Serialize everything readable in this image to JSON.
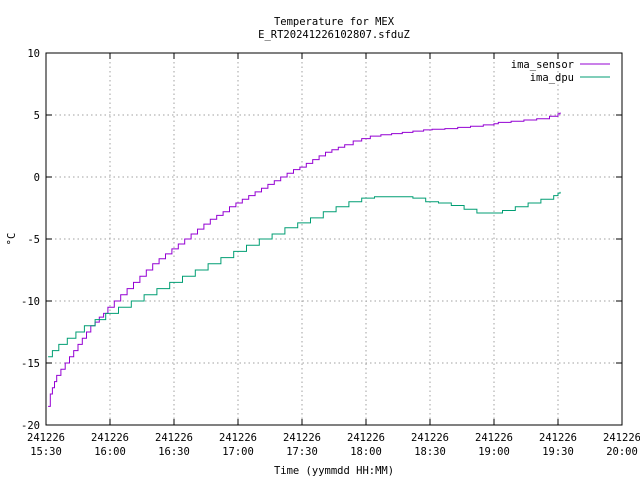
{
  "chart_data": {
    "type": "line",
    "title": "Temperature for MEX",
    "subtitle": "E_RT20241226102807.sfduZ",
    "xlabel": "Time (yymmdd HH:MM)",
    "ylabel": "°C",
    "xlim": [
      "241226 15:30",
      "241226 20:00"
    ],
    "ylim": [
      -20,
      10
    ],
    "grid": true,
    "legend_position": "top-right",
    "x_ticks": [
      {
        "date": "241226",
        "time": "15:30"
      },
      {
        "date": "241226",
        "time": "16:00"
      },
      {
        "date": "241226",
        "time": "16:30"
      },
      {
        "date": "241226",
        "time": "17:00"
      },
      {
        "date": "241226",
        "time": "17:30"
      },
      {
        "date": "241226",
        "time": "18:00"
      },
      {
        "date": "241226",
        "time": "18:30"
      },
      {
        "date": "241226",
        "time": "19:00"
      },
      {
        "date": "241226",
        "time": "19:30"
      },
      {
        "date": "241226",
        "time": "20:00"
      }
    ],
    "y_ticks": [
      "10",
      "5",
      "0",
      "-5",
      "-10",
      "-15",
      "-20"
    ],
    "series": [
      {
        "name": "ima_sensor",
        "color": "#9400d3",
        "x": [
          "15:31",
          "15:32",
          "15:33",
          "15:34",
          "15:35",
          "15:37",
          "15:39",
          "15:41",
          "15:43",
          "15:45",
          "15:47",
          "15:49",
          "15:51",
          "15:53",
          "15:55",
          "15:57",
          "15:59",
          "16:02",
          "16:05",
          "16:08",
          "16:11",
          "16:14",
          "16:17",
          "16:20",
          "16:23",
          "16:26",
          "16:29",
          "16:32",
          "16:35",
          "16:38",
          "16:41",
          "16:44",
          "16:47",
          "16:50",
          "16:53",
          "16:56",
          "16:59",
          "17:02",
          "17:05",
          "17:08",
          "17:11",
          "17:14",
          "17:17",
          "17:20",
          "17:23",
          "17:26",
          "17:29",
          "17:32",
          "17:35",
          "17:38",
          "17:41",
          "17:44",
          "17:47",
          "17:50",
          "17:54",
          "17:58",
          "18:02",
          "18:07",
          "18:12",
          "18:17",
          "18:22",
          "18:27",
          "18:31",
          "18:37",
          "18:43",
          "18:49",
          "18:55",
          "19:00",
          "19:02",
          "19:08",
          "19:14",
          "19:20",
          "19:26",
          "19:30",
          "19:31"
        ],
        "values": [
          -18.5,
          -17.5,
          -17.0,
          -16.5,
          -16.0,
          -15.5,
          -15.0,
          -14.5,
          -14.0,
          -13.5,
          -13.0,
          -12.5,
          -12.0,
          -11.7,
          -11.3,
          -11.0,
          -10.5,
          -10.0,
          -9.5,
          -9.0,
          -8.5,
          -8.0,
          -7.5,
          -7.0,
          -6.6,
          -6.2,
          -5.8,
          -5.4,
          -5.0,
          -4.6,
          -4.2,
          -3.8,
          -3.4,
          -3.1,
          -2.8,
          -2.4,
          -2.1,
          -1.8,
          -1.5,
          -1.2,
          -0.9,
          -0.6,
          -0.3,
          0.0,
          0.3,
          0.6,
          0.8,
          1.1,
          1.4,
          1.7,
          2.0,
          2.2,
          2.4,
          2.6,
          2.9,
          3.1,
          3.3,
          3.4,
          3.5,
          3.6,
          3.7,
          3.8,
          3.85,
          3.9,
          4.0,
          4.1,
          4.2,
          4.3,
          4.4,
          4.5,
          4.6,
          4.7,
          4.9,
          5.1,
          5.2
        ]
      },
      {
        "name": "ima_dpu",
        "color": "#009e73",
        "x": [
          "15:31",
          "15:33",
          "15:36",
          "15:40",
          "15:44",
          "15:48",
          "15:53",
          "15:58",
          "16:04",
          "16:10",
          "16:16",
          "16:22",
          "16:28",
          "16:34",
          "16:40",
          "16:46",
          "16:52",
          "16:58",
          "17:04",
          "17:10",
          "17:16",
          "17:22",
          "17:28",
          "17:34",
          "17:40",
          "17:46",
          "17:52",
          "17:58",
          "18:04",
          "18:10",
          "18:16",
          "18:22",
          "18:28",
          "18:34",
          "18:40",
          "18:46",
          "18:52",
          "18:58",
          "19:04",
          "19:10",
          "19:16",
          "19:22",
          "19:28",
          "19:30",
          "19:31"
        ],
        "values": [
          -14.5,
          -14.0,
          -13.5,
          -13.0,
          -12.5,
          -12.0,
          -11.5,
          -11.0,
          -10.5,
          -10.0,
          -9.5,
          -9.0,
          -8.5,
          -8.0,
          -7.5,
          -7.0,
          -6.5,
          -6.0,
          -5.5,
          -5.0,
          -4.6,
          -4.1,
          -3.7,
          -3.3,
          -2.8,
          -2.4,
          -2.0,
          -1.7,
          -1.6,
          -1.6,
          -1.6,
          -1.7,
          -2.0,
          -2.1,
          -2.3,
          -2.6,
          -2.9,
          -2.9,
          -2.7,
          -2.4,
          -2.1,
          -1.8,
          -1.5,
          -1.3,
          -1.2
        ]
      }
    ]
  }
}
